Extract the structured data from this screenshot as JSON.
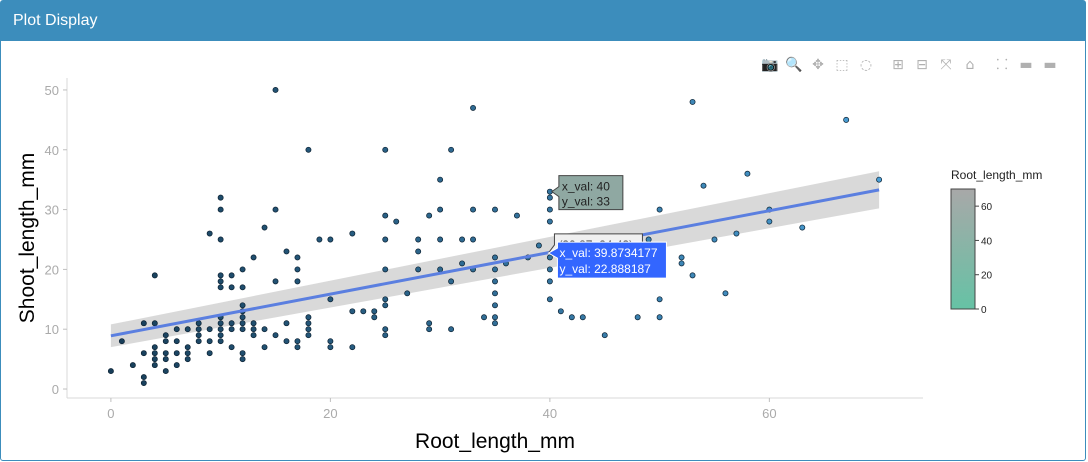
{
  "panel": {
    "title": "Plot Display"
  },
  "toolbar": [
    {
      "name": "camera-icon",
      "glyph": "📷"
    },
    {
      "name": "zoom-icon",
      "glyph": "🔍",
      "active": true
    },
    {
      "name": "pan-icon",
      "glyph": "✥"
    },
    {
      "name": "box-select-icon",
      "glyph": "⬚"
    },
    {
      "name": "lasso-select-icon",
      "glyph": "◌"
    },
    {
      "name": "zoom-in-icon",
      "glyph": "⊞"
    },
    {
      "name": "zoom-out-icon",
      "glyph": "⊟"
    },
    {
      "name": "autoscale-icon",
      "glyph": "⤧"
    },
    {
      "name": "reset-axes-icon",
      "glyph": "⌂"
    },
    {
      "name": "spike-lines-icon",
      "glyph": "⸬"
    },
    {
      "name": "hover-closest-icon",
      "glyph": "▬"
    },
    {
      "name": "hover-compare-icon",
      "glyph": "▬"
    }
  ],
  "chart_data": {
    "type": "scatter",
    "xlabel": "Root_length_mm",
    "ylabel": "Shoot_length_mm",
    "xlim": [
      -4,
      74
    ],
    "ylim": [
      -1.5,
      52
    ],
    "xticks": [
      0,
      20,
      40,
      60
    ],
    "yticks": [
      0,
      10,
      20,
      30,
      40,
      50
    ],
    "colorbar": {
      "title": "Root_length_mm",
      "ticks": [
        0,
        20,
        40,
        60
      ],
      "range": [
        0,
        70
      ],
      "low_color": "#66c2a5",
      "high_color": "#a8a8a8"
    },
    "marker_color_low": "#173d58",
    "marker_color_high": "#4a9fd6",
    "points": [
      [
        0,
        3
      ],
      [
        1,
        8
      ],
      [
        2,
        4
      ],
      [
        3,
        1
      ],
      [
        3,
        2
      ],
      [
        3,
        6
      ],
      [
        3,
        11
      ],
      [
        4,
        4
      ],
      [
        4,
        5
      ],
      [
        4,
        6
      ],
      [
        4,
        7
      ],
      [
        4,
        11
      ],
      [
        4,
        19
      ],
      [
        5,
        3
      ],
      [
        5,
        5
      ],
      [
        5,
        6
      ],
      [
        5,
        8
      ],
      [
        5,
        9
      ],
      [
        6,
        4
      ],
      [
        6,
        6
      ],
      [
        6,
        8
      ],
      [
        6,
        10
      ],
      [
        7,
        5
      ],
      [
        7,
        6
      ],
      [
        7,
        7
      ],
      [
        7,
        10
      ],
      [
        8,
        8
      ],
      [
        8,
        9
      ],
      [
        8,
        10
      ],
      [
        8,
        11
      ],
      [
        9,
        6
      ],
      [
        9,
        8
      ],
      [
        9,
        10
      ],
      [
        9,
        26
      ],
      [
        10,
        8
      ],
      [
        10,
        9
      ],
      [
        10,
        10
      ],
      [
        10,
        11
      ],
      [
        10,
        12
      ],
      [
        10,
        17
      ],
      [
        10,
        18
      ],
      [
        10,
        19
      ],
      [
        10,
        25
      ],
      [
        10,
        30
      ],
      [
        10,
        32
      ],
      [
        11,
        7
      ],
      [
        11,
        10
      ],
      [
        11,
        11
      ],
      [
        11,
        17
      ],
      [
        11,
        19
      ],
      [
        12,
        5
      ],
      [
        12,
        6
      ],
      [
        12,
        10
      ],
      [
        12,
        11
      ],
      [
        12,
        12
      ],
      [
        12,
        13
      ],
      [
        12,
        14
      ],
      [
        12,
        17
      ],
      [
        12,
        20
      ],
      [
        13,
        9
      ],
      [
        13,
        10
      ],
      [
        13,
        11
      ],
      [
        13,
        22
      ],
      [
        14,
        7
      ],
      [
        14,
        10
      ],
      [
        14,
        27
      ],
      [
        15,
        9
      ],
      [
        15,
        18
      ],
      [
        15,
        30
      ],
      [
        15,
        50
      ],
      [
        16,
        8
      ],
      [
        16,
        11
      ],
      [
        16,
        23
      ],
      [
        17,
        7
      ],
      [
        17,
        8
      ],
      [
        17,
        18
      ],
      [
        17,
        20
      ],
      [
        17,
        22
      ],
      [
        18,
        9
      ],
      [
        18,
        10
      ],
      [
        18,
        11
      ],
      [
        18,
        12
      ],
      [
        18,
        40
      ],
      [
        19,
        25
      ],
      [
        20,
        7
      ],
      [
        20,
        8
      ],
      [
        20,
        15
      ],
      [
        20,
        25
      ],
      [
        22,
        7
      ],
      [
        22,
        13
      ],
      [
        22,
        26
      ],
      [
        23,
        13
      ],
      [
        24,
        12
      ],
      [
        24,
        13
      ],
      [
        25,
        9
      ],
      [
        25,
        10
      ],
      [
        25,
        14
      ],
      [
        25,
        15
      ],
      [
        25,
        20
      ],
      [
        25,
        25
      ],
      [
        25,
        29
      ],
      [
        25,
        40
      ],
      [
        26,
        28
      ],
      [
        27,
        16
      ],
      [
        28,
        20
      ],
      [
        28,
        23
      ],
      [
        28,
        25
      ],
      [
        29,
        10
      ],
      [
        29,
        11
      ],
      [
        29,
        29
      ],
      [
        30,
        20
      ],
      [
        30,
        25
      ],
      [
        30,
        30
      ],
      [
        30,
        35
      ],
      [
        31,
        10
      ],
      [
        31,
        18
      ],
      [
        31,
        40
      ],
      [
        32,
        21
      ],
      [
        32,
        25
      ],
      [
        33,
        20
      ],
      [
        33,
        25
      ],
      [
        33,
        30
      ],
      [
        33,
        47
      ],
      [
        34,
        12
      ],
      [
        35,
        11
      ],
      [
        35,
        12
      ],
      [
        35,
        14
      ],
      [
        35,
        16
      ],
      [
        35,
        18
      ],
      [
        35,
        20
      ],
      [
        35,
        22
      ],
      [
        35,
        30
      ],
      [
        36,
        21
      ],
      [
        37,
        29
      ],
      [
        38,
        22
      ],
      [
        39,
        24
      ],
      [
        40,
        15
      ],
      [
        40,
        18
      ],
      [
        40,
        20
      ],
      [
        40,
        22
      ],
      [
        40,
        28
      ],
      [
        40,
        30
      ],
      [
        40,
        32
      ],
      [
        40,
        33
      ],
      [
        41,
        13
      ],
      [
        42,
        12
      ],
      [
        43,
        12
      ],
      [
        45,
        9
      ],
      [
        48,
        12
      ],
      [
        49,
        25
      ],
      [
        50,
        12
      ],
      [
        50,
        15
      ],
      [
        50,
        30
      ],
      [
        52,
        21
      ],
      [
        52,
        22
      ],
      [
        53,
        19
      ],
      [
        53,
        48
      ],
      [
        54,
        34
      ],
      [
        55,
        25
      ],
      [
        56,
        16
      ],
      [
        57,
        26
      ],
      [
        58,
        36
      ],
      [
        60,
        28
      ],
      [
        60,
        30
      ],
      [
        63,
        27
      ],
      [
        67,
        45
      ],
      [
        70,
        35
      ]
    ],
    "regression": {
      "x0": 0,
      "y0": 8.9,
      "x1": 70,
      "y1": 33.3,
      "ci_low0": 7.0,
      "ci_high0": 10.8,
      "ci_low1": 30.2,
      "ci_high1": 36.4
    },
    "annotations": [
      {
        "kind": "hover-point",
        "line1": "x_val: 40",
        "line2": "y_val: 33",
        "at": [
          40,
          33
        ],
        "fill": "#8fa8a2"
      },
      {
        "kind": "spike-x",
        "text": "(39.87, 24.43)",
        "at": [
          39.87,
          24.43
        ]
      },
      {
        "kind": "hover-line",
        "line1": "x_val: 39.8734177",
        "line2": "y_val: 22.888187",
        "at": [
          39.87,
          22.89
        ],
        "fill": "#3366ff"
      }
    ]
  }
}
